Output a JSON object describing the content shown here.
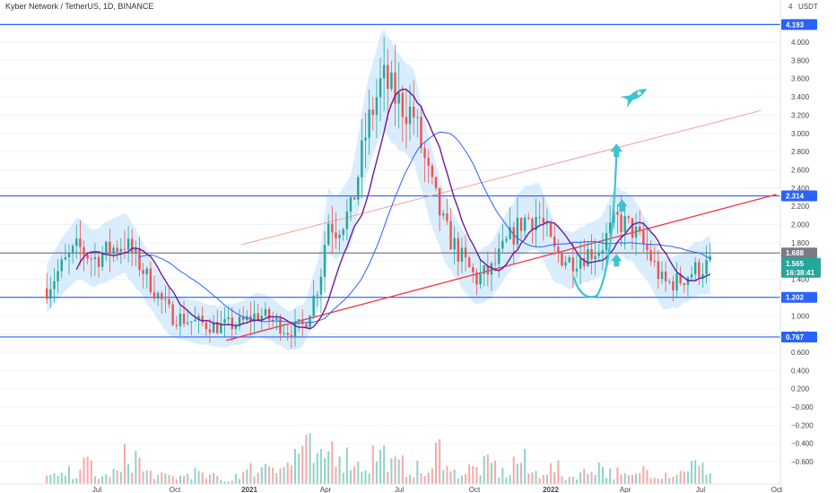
{
  "header": {
    "title": "Kyber Network / TetherUS, 1D, BINANCE",
    "currency": "USDT"
  },
  "chart_data": {
    "type": "candlestick",
    "symbol": "Kyber Network / TetherUS",
    "timeframe": "1D",
    "exchange": "BINANCE",
    "y_ticks": [
      "4.000",
      "3.800",
      "3.600",
      "3.400",
      "3.200",
      "3.000",
      "2.800",
      "2.600",
      "2.400",
      "2.200",
      "2.000",
      "1.800",
      "1.600",
      "1.400",
      "1.200",
      "1.000",
      "0.800",
      "0.600",
      "0.400",
      "0.200",
      "−0.000",
      "−0.200",
      "−0.400",
      "−0.600"
    ],
    "x_ticks": [
      "Jul",
      "Oct",
      "2021",
      "Apr",
      "Jul",
      "Oct",
      "2022",
      "Apr",
      "Jul",
      "Oct"
    ],
    "price_tags": [
      {
        "label": "4.193",
        "value": 4.193,
        "color": "#2962ff"
      },
      {
        "label": "2.314",
        "value": 2.314,
        "color": "#2962ff"
      },
      {
        "label": "1.688",
        "value": 1.688,
        "color": "#787b86"
      },
      {
        "label": "1.202",
        "value": 1.202,
        "color": "#2962ff"
      },
      {
        "label": "0.767",
        "value": 0.767,
        "color": "#2962ff"
      }
    ],
    "current_price": {
      "label": "1.565",
      "countdown": "16:38:41",
      "value": 1.565,
      "color": "#26a69a"
    },
    "horizontal_levels": [
      4.193,
      2.314,
      1.688,
      1.202,
      0.767
    ],
    "price_path": [
      [
        0.06,
        1.3
      ],
      [
        0.08,
        1.55
      ],
      [
        0.1,
        1.75
      ],
      [
        0.12,
        1.62
      ],
      [
        0.14,
        1.72
      ],
      [
        0.16,
        1.8
      ],
      [
        0.18,
        1.55
      ],
      [
        0.2,
        1.25
      ],
      [
        0.22,
        1.0
      ],
      [
        0.25,
        0.93
      ],
      [
        0.28,
        0.88
      ],
      [
        0.31,
        0.92
      ],
      [
        0.33,
        1.02
      ],
      [
        0.35,
        0.95
      ],
      [
        0.37,
        0.83
      ],
      [
        0.39,
        0.9
      ],
      [
        0.41,
        1.4
      ],
      [
        0.42,
        2.05
      ],
      [
        0.43,
        1.95
      ],
      [
        0.45,
        2.15
      ],
      [
        0.47,
        3.05
      ],
      [
        0.49,
        3.6
      ],
      [
        0.51,
        3.35
      ],
      [
        0.53,
        3.2
      ],
      [
        0.55,
        2.5
      ],
      [
        0.57,
        1.95
      ],
      [
        0.59,
        1.65
      ],
      [
        0.61,
        1.4
      ],
      [
        0.63,
        1.5
      ],
      [
        0.65,
        1.8
      ],
      [
        0.67,
        2.05
      ],
      [
        0.69,
        2.1
      ],
      [
        0.71,
        1.7
      ],
      [
        0.73,
        1.6
      ],
      [
        0.75,
        1.68
      ],
      [
        0.77,
        1.75
      ],
      [
        0.79,
        2.05
      ],
      [
        0.81,
        1.95
      ],
      [
        0.83,
        1.7
      ],
      [
        0.85,
        1.35
      ],
      [
        0.87,
        1.38
      ],
      [
        0.89,
        1.5
      ],
      [
        0.91,
        1.56
      ]
    ],
    "volume_path": [
      0.2,
      0.3,
      0.5,
      0.2,
      0.3,
      0.7,
      0.3,
      0.2,
      0.2,
      0.3,
      0.2,
      0.1,
      0.3,
      0.4,
      0.6,
      0.5,
      0.9,
      0.6,
      1.0,
      0.7,
      0.5,
      0.8,
      0.5,
      0.4,
      0.3,
      0.9,
      0.3,
      0.4,
      0.5,
      0.3,
      0.6,
      0.3,
      0.4,
      0.2,
      0.3,
      0.5,
      0.3,
      0.2,
      0.4,
      0.3,
      0.3,
      0.5,
      0.4
    ],
    "up_color": "#26a69a",
    "down_color": "#ef5350",
    "ma_colors": {
      "fast": "#6a1b9a",
      "slow": "#2962ff",
      "band": "#bbdefb"
    },
    "trendline_color": "#f23645",
    "projection_color": "#3dc4d0",
    "icons": [
      "rocket-icon",
      "up-arrow-icon",
      "up-arrow-icon",
      "up-arrow-icon"
    ]
  }
}
